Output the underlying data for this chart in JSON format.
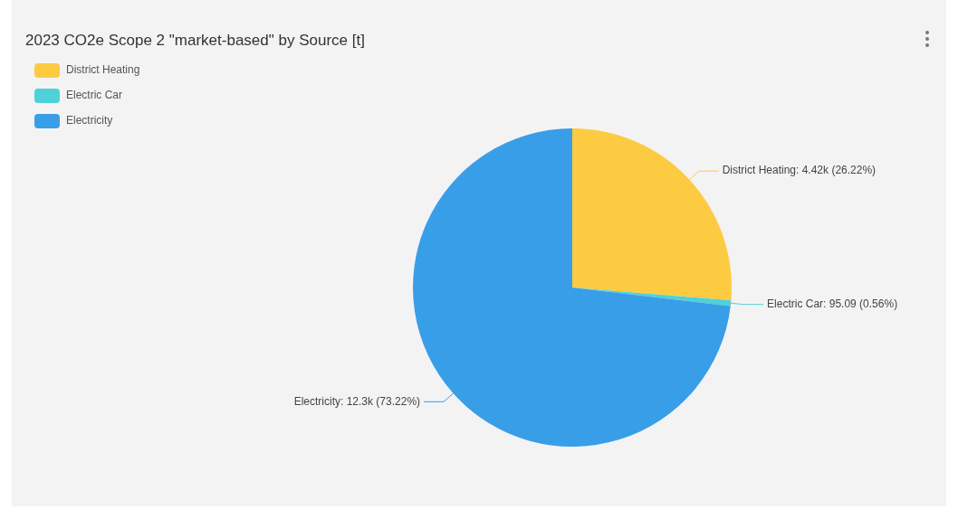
{
  "chart_data": {
    "type": "pie",
    "title": "2023 CO2e Scope 2 \"market-based\" by Source [t]",
    "categories": [
      "District Heating",
      "Electric Car",
      "Electricity"
    ],
    "values": [
      4420,
      95.09,
      12300
    ],
    "colors": [
      "#fdcb42",
      "#4fd1d9",
      "#399ee8"
    ],
    "value_labels": [
      "District Heating: 4.42k (26.22%)",
      "Electric Car: 95.09 (0.56%)",
      "Electricity: 12.3k (73.22%)"
    ],
    "legend": "top left"
  }
}
